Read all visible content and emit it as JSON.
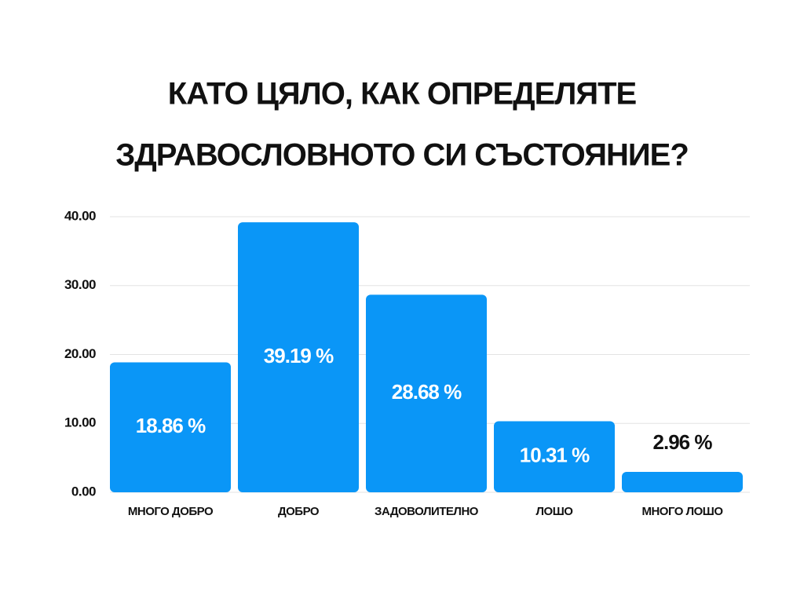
{
  "chart_data": {
    "type": "bar",
    "title": [
      "КАТО ЦЯЛО, КАК ОПРЕДЕЛЯТЕ",
      "ЗДРАВОСЛОВНОТО СИ СЪСТОЯНИЕ?"
    ],
    "categories": [
      "МНОГО ДОБРО",
      "ДОБРО",
      "ЗАДОВОЛИТЕЛНО",
      "ЛОШО",
      "МНОГО ЛОШО"
    ],
    "values": [
      18.86,
      39.19,
      28.68,
      10.31,
      2.96
    ],
    "value_labels": [
      "18.86 %",
      "39.19 %",
      "28.68 %",
      "10.31 %",
      "2.96 %"
    ],
    "color": "#0a96f7",
    "ylim": [
      0,
      40
    ],
    "yticks": [
      {
        "value": 0,
        "label": "0.00"
      },
      {
        "value": 10,
        "label": "10.00"
      },
      {
        "value": 20,
        "label": "20.00"
      },
      {
        "value": 30,
        "label": "30.00"
      },
      {
        "value": 40,
        "label": "40.00"
      }
    ],
    "grid": true
  }
}
